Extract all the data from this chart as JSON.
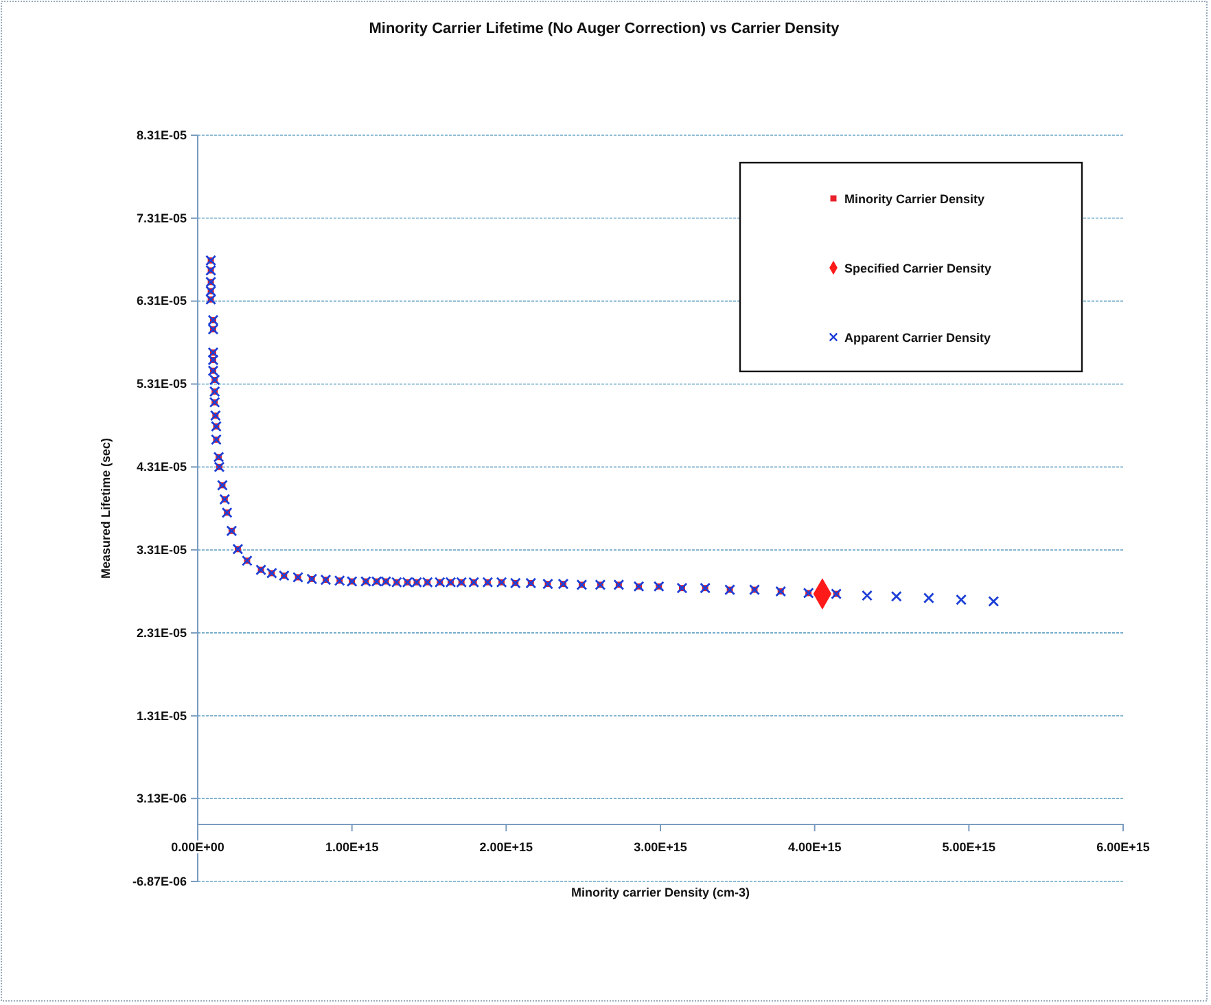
{
  "chart_data": {
    "type": "scatter",
    "title": "Minority Carrier Lifetime (No Auger Correction) vs Carrier Density",
    "xlabel": "Minority carrier Density (cm-3)",
    "ylabel": "Measured Lifetime (sec)",
    "xlim": [
      0,
      6000000000000000.0
    ],
    "ylim": [
      -6.87e-06,
      8.31e-05
    ],
    "xticks": [
      {
        "value": 0,
        "label": "0.00E+00"
      },
      {
        "value": 1000000000000000.0,
        "label": "1.00E+15"
      },
      {
        "value": 2000000000000000.0,
        "label": "2.00E+15"
      },
      {
        "value": 3000000000000000.0,
        "label": "3.00E+15"
      },
      {
        "value": 4000000000000000.0,
        "label": "4.00E+15"
      },
      {
        "value": 5000000000000000.0,
        "label": "5.00E+15"
      },
      {
        "value": 6000000000000000.0,
        "label": "6.00E+15"
      }
    ],
    "yticks": [
      {
        "value": -6.87e-06,
        "label": "-6.87E-06"
      },
      {
        "value": 3.13e-06,
        "label": "3.13E-06"
      },
      {
        "value": 1.31e-05,
        "label": "1.31E-05"
      },
      {
        "value": 2.31e-05,
        "label": "2.31E-05"
      },
      {
        "value": 3.31e-05,
        "label": "3.31E-05"
      },
      {
        "value": 4.31e-05,
        "label": "4.31E-05"
      },
      {
        "value": 5.31e-05,
        "label": "5.31E-05"
      },
      {
        "value": 6.31e-05,
        "label": "6.31E-05"
      },
      {
        "value": 7.31e-05,
        "label": "7.31E-05"
      },
      {
        "value": 8.31e-05,
        "label": "8.31E-05"
      }
    ],
    "grid": "y",
    "legend": "top right",
    "series": [
      {
        "name": "Minority Carrier Density",
        "color": "#e8202a",
        "marker": "square",
        "x": [
          85000000000000.0,
          85000000000000.0,
          85000000000000.0,
          85000000000000.0,
          85000000000000.0,
          100000000000000.0,
          100000000000000.0,
          100000000000000.0,
          100000000000000.0,
          100000000000000.0,
          110000000000000.0,
          110000000000000.0,
          110000000000000.0,
          115000000000000.0,
          120000000000000.0,
          120000000000000.0,
          136000000000000.0,
          140000000000000.0,
          160000000000000.0,
          175000000000000.0,
          190000000000000.0,
          220000000000000.0,
          260000000000000.0,
          320000000000000.0,
          410000000000000.0,
          480000000000000.0,
          560000000000000.0,
          650000000000000.0,
          740000000000000.0,
          830000000000000.0,
          920000000000000.0,
          1000000000000000.0,
          1090000000000000.0,
          1160000000000000.0,
          1220000000000000.0,
          1290000000000000.0,
          1360000000000000.0,
          1420000000000000.0,
          1490000000000000.0,
          1570000000000000.0,
          1640000000000000.0,
          1710000000000000.0,
          1790000000000000.0,
          1880000000000000.0,
          1970000000000000.0,
          2060000000000000.0,
          2160000000000000.0,
          2270000000000000.0,
          2370000000000000.0,
          2490000000000000.0,
          2610000000000000.0,
          2730000000000000.0,
          2860000000000000.0,
          2990000000000000.0,
          3140000000000000.0,
          3290000000000000.0,
          3450000000000000.0,
          3610000000000000.0,
          3780000000000000.0,
          3960000000000000.0,
          4140000000000000.0
        ],
        "values": [
          6.8e-05,
          6.68e-05,
          6.54e-05,
          6.43e-05,
          6.33e-05,
          6.08e-05,
          5.97e-05,
          5.69e-05,
          5.6e-05,
          5.47e-05,
          5.36e-05,
          5.22e-05,
          5.09e-05,
          4.93e-05,
          4.8e-05,
          4.64e-05,
          4.43e-05,
          4.31e-05,
          4.09e-05,
          3.92e-05,
          3.76e-05,
          3.54e-05,
          3.32e-05,
          3.18e-05,
          3.07e-05,
          3.03e-05,
          3e-05,
          2.98e-05,
          2.96e-05,
          2.95e-05,
          2.94e-05,
          2.93e-05,
          2.93e-05,
          2.93e-05,
          2.93e-05,
          2.92e-05,
          2.92e-05,
          2.92e-05,
          2.92e-05,
          2.92e-05,
          2.92e-05,
          2.92e-05,
          2.92e-05,
          2.92e-05,
          2.92e-05,
          2.91e-05,
          2.91e-05,
          2.9e-05,
          2.9e-05,
          2.89e-05,
          2.89e-05,
          2.89e-05,
          2.87e-05,
          2.87e-05,
          2.85e-05,
          2.85e-05,
          2.83e-05,
          2.83e-05,
          2.81e-05,
          2.79e-05,
          2.78e-05
        ]
      },
      {
        "name": "Specified Carrier Density",
        "color": "#ff1a1a",
        "marker": "diamond",
        "x": [
          4050000000000000.0
        ],
        "values": [
          2.78e-05
        ]
      },
      {
        "name": "Apparent Carrier Density",
        "color": "#1c3fd6",
        "marker": "cross",
        "x": [
          85000000000000.0,
          85000000000000.0,
          85000000000000.0,
          85000000000000.0,
          85000000000000.0,
          100000000000000.0,
          100000000000000.0,
          100000000000000.0,
          100000000000000.0,
          100000000000000.0,
          110000000000000.0,
          110000000000000.0,
          110000000000000.0,
          115000000000000.0,
          120000000000000.0,
          120000000000000.0,
          136000000000000.0,
          140000000000000.0,
          160000000000000.0,
          175000000000000.0,
          190000000000000.0,
          220000000000000.0,
          260000000000000.0,
          320000000000000.0,
          410000000000000.0,
          480000000000000.0,
          560000000000000.0,
          650000000000000.0,
          740000000000000.0,
          830000000000000.0,
          920000000000000.0,
          1000000000000000.0,
          1090000000000000.0,
          1160000000000000.0,
          1220000000000000.0,
          1290000000000000.0,
          1360000000000000.0,
          1420000000000000.0,
          1490000000000000.0,
          1570000000000000.0,
          1640000000000000.0,
          1710000000000000.0,
          1790000000000000.0,
          1880000000000000.0,
          1970000000000000.0,
          2060000000000000.0,
          2160000000000000.0,
          2270000000000000.0,
          2370000000000000.0,
          2490000000000000.0,
          2610000000000000.0,
          2730000000000000.0,
          2860000000000000.0,
          2990000000000000.0,
          3140000000000000.0,
          3290000000000000.0,
          3450000000000000.0,
          3610000000000000.0,
          3780000000000000.0,
          3960000000000000.0,
          4140000000000000.0,
          4340000000000000.0,
          4530000000000000.0,
          4740000000000000.0,
          4950000000000000.0,
          5160000000000000.0
        ],
        "values": [
          6.8e-05,
          6.68e-05,
          6.54e-05,
          6.43e-05,
          6.33e-05,
          6.08e-05,
          5.97e-05,
          5.69e-05,
          5.6e-05,
          5.47e-05,
          5.36e-05,
          5.22e-05,
          5.09e-05,
          4.93e-05,
          4.8e-05,
          4.64e-05,
          4.43e-05,
          4.31e-05,
          4.09e-05,
          3.92e-05,
          3.76e-05,
          3.54e-05,
          3.32e-05,
          3.18e-05,
          3.07e-05,
          3.03e-05,
          3e-05,
          2.98e-05,
          2.96e-05,
          2.95e-05,
          2.94e-05,
          2.93e-05,
          2.93e-05,
          2.93e-05,
          2.93e-05,
          2.92e-05,
          2.92e-05,
          2.92e-05,
          2.92e-05,
          2.92e-05,
          2.92e-05,
          2.92e-05,
          2.92e-05,
          2.92e-05,
          2.92e-05,
          2.91e-05,
          2.91e-05,
          2.9e-05,
          2.9e-05,
          2.89e-05,
          2.89e-05,
          2.89e-05,
          2.87e-05,
          2.87e-05,
          2.85e-05,
          2.85e-05,
          2.83e-05,
          2.83e-05,
          2.81e-05,
          2.79e-05,
          2.78e-05,
          2.76e-05,
          2.75e-05,
          2.73e-05,
          2.71e-05,
          2.69e-05
        ]
      }
    ]
  }
}
